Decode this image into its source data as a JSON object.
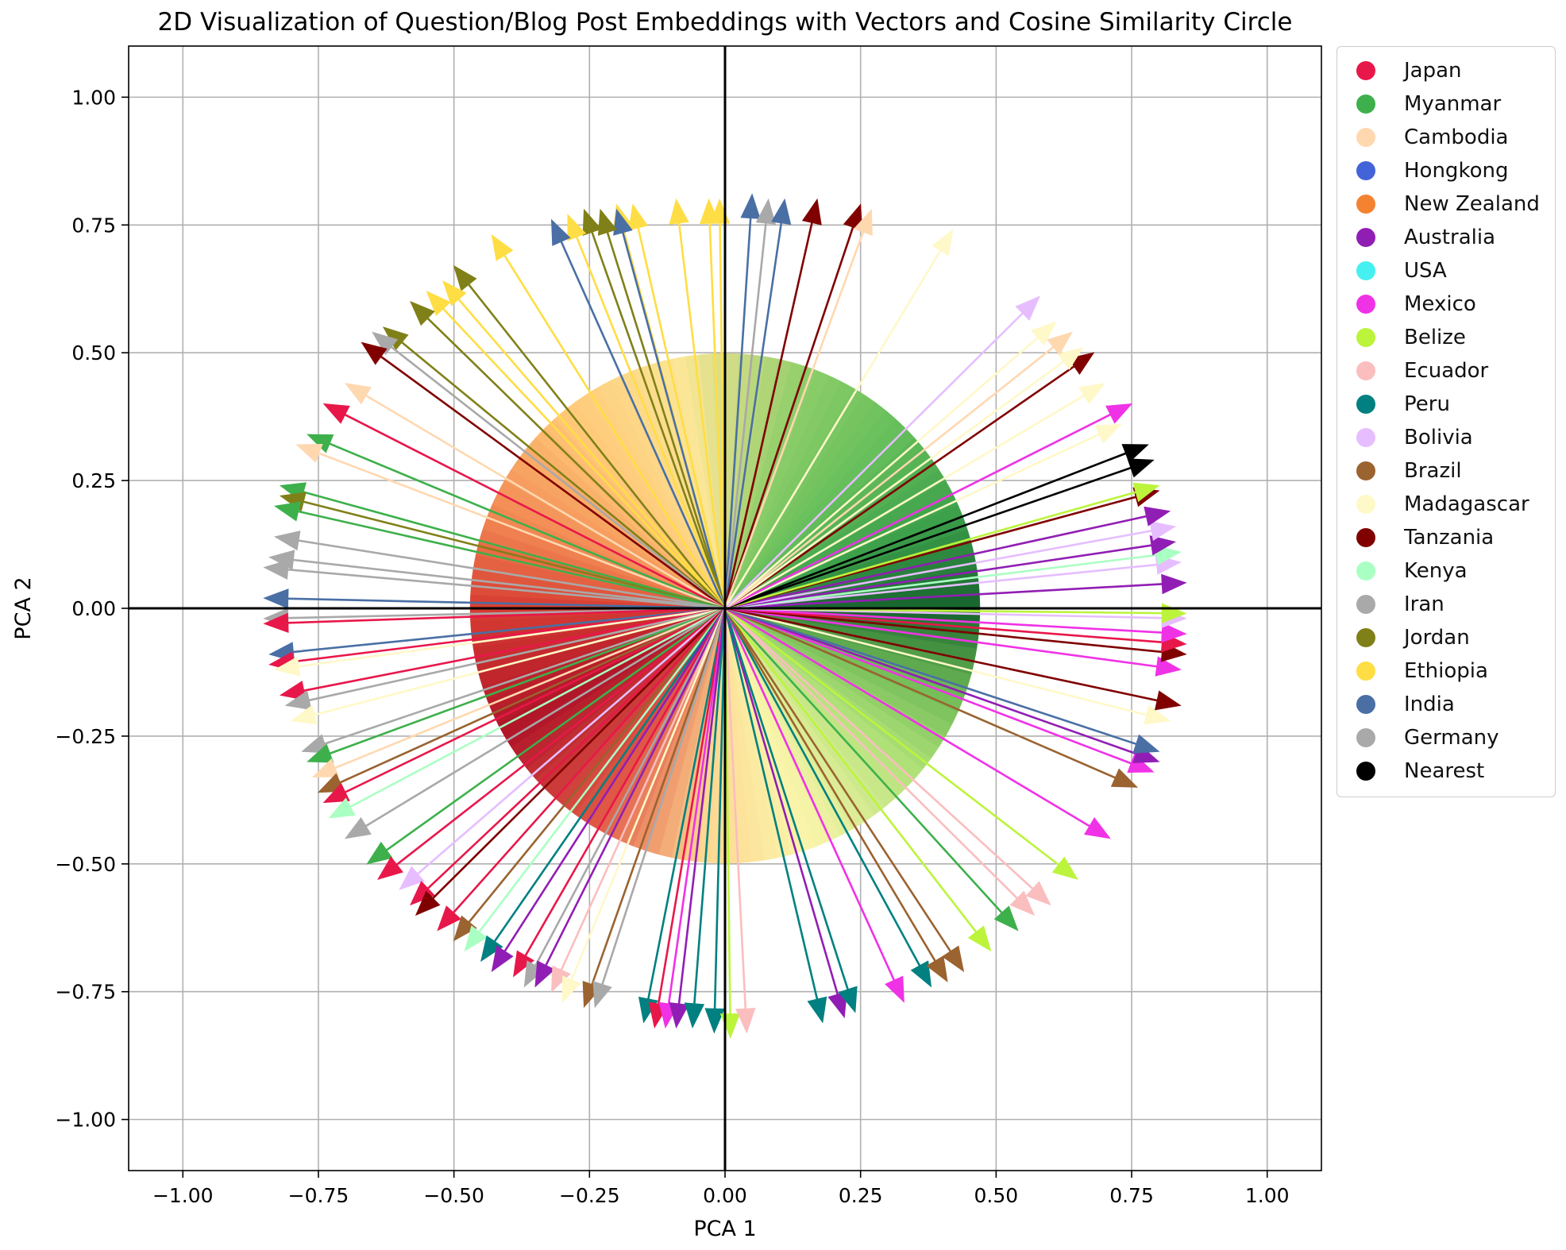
{
  "chart_data": {
    "type": "vector",
    "title": "2D Visualization of Question/Blog Post Embeddings with Vectors and Cosine Similarity Circle",
    "xlabel": "PCA 1",
    "ylabel": "PCA 2",
    "xlim": [
      -1.1,
      1.1
    ],
    "ylim": [
      -1.1,
      1.1
    ],
    "xticks": [
      "−1.00",
      "−0.75",
      "−0.50",
      "−0.25",
      "0.00",
      "0.25",
      "0.50",
      "0.75",
      "1.00"
    ],
    "yticks": [
      "1.00",
      "0.75",
      "0.50",
      "0.25",
      "0.00",
      "−0.25",
      "−0.50",
      "−0.75",
      "−1.00"
    ],
    "xtick_values": [
      -1.0,
      -0.75,
      -0.5,
      -0.25,
      0.0,
      0.25,
      0.5,
      0.75,
      1.0
    ],
    "ytick_values": [
      1.0,
      0.75,
      0.5,
      0.25,
      0.0,
      -0.25,
      -0.5,
      -0.75,
      -1.0
    ],
    "grid": true,
    "legend_position": "outside-right",
    "cosine_circle_radius": 0.47,
    "legend": [
      {
        "name": "Japan",
        "color": "#e8174a"
      },
      {
        "name": "Myanmar",
        "color": "#3db04b"
      },
      {
        "name": "Cambodia",
        "color": "#ffd8b0"
      },
      {
        "name": "Hongkong",
        "color": "#4363d8"
      },
      {
        "name": "New Zealand",
        "color": "#f58231"
      },
      {
        "name": "Australia",
        "color": "#911eb4"
      },
      {
        "name": "USA",
        "color": "#46f0f0"
      },
      {
        "name": "Mexico",
        "color": "#f032e6"
      },
      {
        "name": "Belize",
        "color": "#bcf43c"
      },
      {
        "name": "Ecuador",
        "color": "#fabebe"
      },
      {
        "name": "Peru",
        "color": "#008080"
      },
      {
        "name": "Bolivia",
        "color": "#e6beff"
      },
      {
        "name": "Brazil",
        "color": "#9a6330"
      },
      {
        "name": "Madagascar",
        "color": "#fff8c8"
      },
      {
        "name": "Tanzania",
        "color": "#800000"
      },
      {
        "name": "Kenya",
        "color": "#aaffc3"
      },
      {
        "name": "Iran",
        "color": "#a9a9a9"
      },
      {
        "name": "Jordan",
        "color": "#808019"
      },
      {
        "name": "Ethiopia",
        "color": "#ffdd44"
      },
      {
        "name": "India",
        "color": "#4a6fa5"
      },
      {
        "name": "Germany",
        "color": "#a9a9a9"
      },
      {
        "name": "Nearest",
        "color": "#000000"
      }
    ],
    "vectors": [
      {
        "series": "Ethiopia",
        "x": -0.09,
        "y": 0.8
      },
      {
        "series": "Ethiopia",
        "x": -0.03,
        "y": 0.8
      },
      {
        "series": "Ethiopia",
        "x": -0.01,
        "y": 0.8
      },
      {
        "series": "India",
        "x": 0.05,
        "y": 0.81
      },
      {
        "series": "Iran",
        "x": 0.08,
        "y": 0.8
      },
      {
        "series": "India",
        "x": 0.11,
        "y": 0.8
      },
      {
        "series": "Tanzania",
        "x": 0.17,
        "y": 0.8
      },
      {
        "series": "Tanzania",
        "x": 0.25,
        "y": 0.79
      },
      {
        "series": "Cambodia",
        "x": 0.27,
        "y": 0.78
      },
      {
        "series": "Madagascar",
        "x": 0.42,
        "y": 0.74
      },
      {
        "series": "Ethiopia",
        "x": -0.17,
        "y": 0.79
      },
      {
        "series": "Ethiopia",
        "x": -0.2,
        "y": 0.79
      },
      {
        "series": "India",
        "x": -0.2,
        "y": 0.78
      },
      {
        "series": "Jordan",
        "x": -0.23,
        "y": 0.78
      },
      {
        "series": "Jordan",
        "x": -0.26,
        "y": 0.78
      },
      {
        "series": "Ethiopia",
        "x": -0.29,
        "y": 0.77
      },
      {
        "series": "India",
        "x": -0.32,
        "y": 0.76
      },
      {
        "series": "Ethiopia",
        "x": -0.43,
        "y": 0.73
      },
      {
        "series": "Jordan",
        "x": -0.5,
        "y": 0.67
      },
      {
        "series": "Ethiopia",
        "x": -0.52,
        "y": 0.64
      },
      {
        "series": "Ethiopia",
        "x": -0.55,
        "y": 0.62
      },
      {
        "series": "Jordan",
        "x": -0.58,
        "y": 0.6
      },
      {
        "series": "Jordan",
        "x": -0.63,
        "y": 0.55
      },
      {
        "series": "Iran",
        "x": -0.65,
        "y": 0.54
      },
      {
        "series": "Tanzania",
        "x": -0.67,
        "y": 0.52
      },
      {
        "series": "Cambodia",
        "x": -0.7,
        "y": 0.44
      },
      {
        "series": "Japan",
        "x": -0.74,
        "y": 0.4
      },
      {
        "series": "Myanmar",
        "x": -0.77,
        "y": 0.34
      },
      {
        "series": "Cambodia",
        "x": -0.79,
        "y": 0.32
      },
      {
        "series": "Myanmar",
        "x": -0.82,
        "y": 0.24
      },
      {
        "series": "Jordan",
        "x": -0.82,
        "y": 0.22
      },
      {
        "series": "Myanmar",
        "x": -0.83,
        "y": 0.2
      },
      {
        "series": "Iran",
        "x": -0.83,
        "y": 0.14
      },
      {
        "series": "Iran",
        "x": -0.84,
        "y": 0.1
      },
      {
        "series": "Iran",
        "x": -0.85,
        "y": 0.08
      },
      {
        "series": "India",
        "x": -0.85,
        "y": 0.02
      },
      {
        "series": "Iran",
        "x": -0.85,
        "y": -0.02
      },
      {
        "series": "Japan",
        "x": -0.85,
        "y": -0.03
      },
      {
        "series": "India",
        "x": -0.84,
        "y": -0.09
      },
      {
        "series": "Japan",
        "x": -0.84,
        "y": -0.11
      },
      {
        "series": "Madagascar",
        "x": -0.83,
        "y": -0.12
      },
      {
        "series": "Japan",
        "x": -0.82,
        "y": -0.17
      },
      {
        "series": "Iran",
        "x": -0.81,
        "y": -0.19
      },
      {
        "series": "Madagascar",
        "x": -0.8,
        "y": -0.22
      },
      {
        "series": "Iran",
        "x": -0.78,
        "y": -0.28
      },
      {
        "series": "Myanmar",
        "x": -0.77,
        "y": -0.3
      },
      {
        "series": "Cambodia",
        "x": -0.76,
        "y": -0.33
      },
      {
        "series": "Brazil",
        "x": -0.75,
        "y": -0.36
      },
      {
        "series": "Japan",
        "x": -0.74,
        "y": -0.38
      },
      {
        "series": "Kenya",
        "x": -0.73,
        "y": -0.41
      },
      {
        "series": "Iran",
        "x": -0.7,
        "y": -0.45
      },
      {
        "series": "Myanmar",
        "x": -0.66,
        "y": -0.5
      },
      {
        "series": "Japan",
        "x": -0.64,
        "y": -0.53
      },
      {
        "series": "Bolivia",
        "x": -0.6,
        "y": -0.55
      },
      {
        "series": "Japan",
        "x": -0.58,
        "y": -0.58
      },
      {
        "series": "Tanzania",
        "x": -0.57,
        "y": -0.6
      },
      {
        "series": "Japan",
        "x": -0.53,
        "y": -0.63
      },
      {
        "series": "Brazil",
        "x": -0.5,
        "y": -0.65
      },
      {
        "series": "Kenya",
        "x": -0.48,
        "y": -0.67
      },
      {
        "series": "Peru",
        "x": -0.45,
        "y": -0.69
      },
      {
        "series": "Australia",
        "x": -0.43,
        "y": -0.71
      },
      {
        "series": "Japan",
        "x": -0.39,
        "y": -0.72
      },
      {
        "series": "Iran",
        "x": -0.37,
        "y": -0.74
      },
      {
        "series": "Australia",
        "x": -0.35,
        "y": -0.74
      },
      {
        "series": "Ecuador",
        "x": -0.32,
        "y": -0.75
      },
      {
        "series": "Madagascar",
        "x": -0.3,
        "y": -0.77
      },
      {
        "series": "Brazil",
        "x": -0.26,
        "y": -0.78
      },
      {
        "series": "Iran",
        "x": -0.24,
        "y": -0.78
      },
      {
        "series": "Peru",
        "x": -0.15,
        "y": -0.81
      },
      {
        "series": "Japan",
        "x": -0.13,
        "y": -0.82
      },
      {
        "series": "Mexico",
        "x": -0.11,
        "y": -0.82
      },
      {
        "series": "Australia",
        "x": -0.09,
        "y": -0.82
      },
      {
        "series": "Peru",
        "x": -0.06,
        "y": -0.82
      },
      {
        "series": "Peru",
        "x": -0.02,
        "y": -0.83
      },
      {
        "series": "Belize",
        "x": 0.01,
        "y": -0.84
      },
      {
        "series": "Ecuador",
        "x": 0.04,
        "y": -0.83
      },
      {
        "series": "Peru",
        "x": 0.18,
        "y": -0.81
      },
      {
        "series": "Australia",
        "x": 0.22,
        "y": -0.8
      },
      {
        "series": "Peru",
        "x": 0.24,
        "y": -0.79
      },
      {
        "series": "Mexico",
        "x": 0.33,
        "y": -0.77
      },
      {
        "series": "Peru",
        "x": 0.38,
        "y": -0.74
      },
      {
        "series": "Brazil",
        "x": 0.41,
        "y": -0.73
      },
      {
        "series": "Brazil",
        "x": 0.44,
        "y": -0.71
      },
      {
        "series": "Belize",
        "x": 0.49,
        "y": -0.67
      },
      {
        "series": "Myanmar",
        "x": 0.54,
        "y": -0.63
      },
      {
        "series": "Ecuador",
        "x": 0.57,
        "y": -0.6
      },
      {
        "series": "Ecuador",
        "x": 0.6,
        "y": -0.58
      },
      {
        "series": "Belize",
        "x": 0.65,
        "y": -0.53
      },
      {
        "series": "Mexico",
        "x": 0.71,
        "y": -0.45
      },
      {
        "series": "Brazil",
        "x": 0.76,
        "y": -0.35
      },
      {
        "series": "Mexico",
        "x": 0.79,
        "y": -0.32
      },
      {
        "series": "Australia",
        "x": 0.8,
        "y": -0.3
      },
      {
        "series": "India",
        "x": 0.8,
        "y": -0.28
      },
      {
        "series": "Madagascar",
        "x": 0.82,
        "y": -0.22
      },
      {
        "series": "Tanzania",
        "x": 0.84,
        "y": -0.19
      },
      {
        "series": "Mexico",
        "x": 0.84,
        "y": -0.12
      },
      {
        "series": "Tanzania",
        "x": 0.85,
        "y": -0.09
      },
      {
        "series": "Japan",
        "x": 0.85,
        "y": -0.07
      },
      {
        "series": "Mexico",
        "x": 0.85,
        "y": -0.05
      },
      {
        "series": "Bolivia",
        "x": 0.85,
        "y": -0.02
      },
      {
        "series": "Belize",
        "x": 0.85,
        "y": -0.01
      },
      {
        "series": "Australia",
        "x": 0.85,
        "y": 0.05
      },
      {
        "series": "Bolivia",
        "x": 0.84,
        "y": 0.09
      },
      {
        "series": "Kenya",
        "x": 0.84,
        "y": 0.11
      },
      {
        "series": "Australia",
        "x": 0.83,
        "y": 0.13
      },
      {
        "series": "Bolivia",
        "x": 0.83,
        "y": 0.16
      },
      {
        "series": "Australia",
        "x": 0.82,
        "y": 0.19
      },
      {
        "series": "Tanzania",
        "x": 0.8,
        "y": 0.23
      },
      {
        "series": "Belize",
        "x": 0.8,
        "y": 0.24
      },
      {
        "series": "Nearest",
        "x": 0.79,
        "y": 0.29
      },
      {
        "series": "Nearest",
        "x": 0.78,
        "y": 0.32
      },
      {
        "series": "Madagascar",
        "x": 0.73,
        "y": 0.36
      },
      {
        "series": "Mexico",
        "x": 0.75,
        "y": 0.4
      },
      {
        "series": "Madagascar",
        "x": 0.7,
        "y": 0.44
      },
      {
        "series": "Tanzania",
        "x": 0.68,
        "y": 0.5
      },
      {
        "series": "Madagascar",
        "x": 0.66,
        "y": 0.51
      },
      {
        "series": "Cambodia",
        "x": 0.64,
        "y": 0.54
      },
      {
        "series": "Madagascar",
        "x": 0.61,
        "y": 0.56
      },
      {
        "series": "Bolivia",
        "x": 0.58,
        "y": 0.61
      }
    ]
  }
}
